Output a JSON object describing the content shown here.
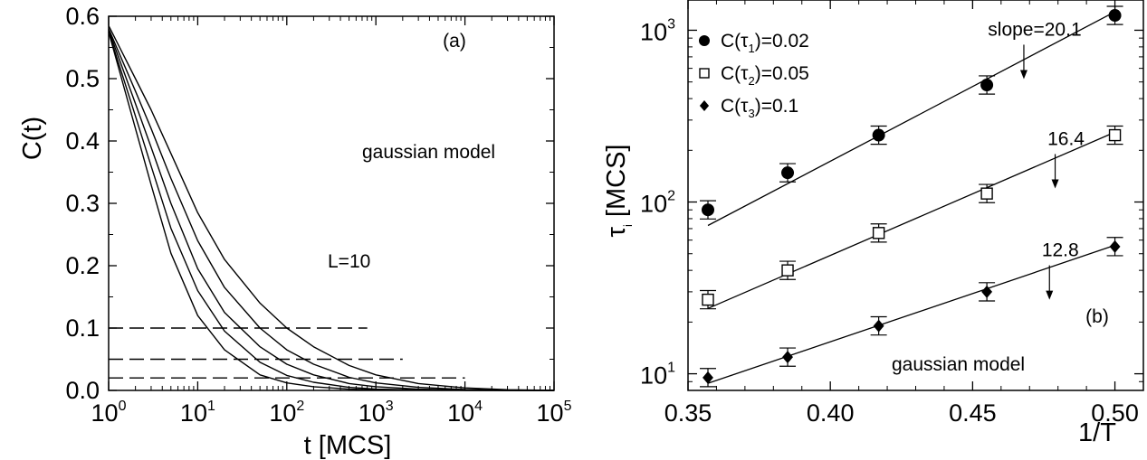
{
  "chart_data": [
    {
      "type": "line",
      "panel_label": "(a)",
      "xlabel": "t [MCS]",
      "ylabel": "C(t)",
      "xscale": "log",
      "x_tick_base": "10",
      "x_tick_exponents": [
        "0",
        "1",
        "2",
        "3",
        "4",
        "5"
      ],
      "xlim": [
        1,
        100000
      ],
      "ylim": [
        0.0,
        0.6
      ],
      "y_ticks": [
        "0.0",
        "0.1",
        "0.2",
        "0.3",
        "0.4",
        "0.5",
        "0.6"
      ],
      "y_tick_values": [
        0.0,
        0.1,
        0.2,
        0.3,
        0.4,
        0.5,
        0.6
      ],
      "annotations": [
        "gaussian model",
        "L=10"
      ],
      "series": [
        {
          "x": [
            1,
            2,
            3,
            5,
            10,
            20,
            50,
            100,
            200,
            500,
            1000,
            3000,
            10000,
            30000,
            100000
          ],
          "y": [
            0.575,
            0.42,
            0.33,
            0.22,
            0.12,
            0.065,
            0.025,
            0.012,
            0.006,
            0.002,
            0.001,
            0.0003,
            0.0001,
            0.0,
            0.0
          ]
        },
        {
          "x": [
            1,
            2,
            3,
            5,
            10,
            20,
            50,
            100,
            200,
            500,
            1000,
            3000,
            10000,
            30000,
            100000
          ],
          "y": [
            0.575,
            0.44,
            0.36,
            0.26,
            0.16,
            0.095,
            0.045,
            0.024,
            0.013,
            0.005,
            0.002,
            0.0008,
            0.0002,
            0.0,
            0.0
          ]
        },
        {
          "x": [
            1,
            2,
            3,
            5,
            10,
            20,
            50,
            100,
            200,
            500,
            1000,
            3000,
            10000,
            30000,
            100000
          ],
          "y": [
            0.578,
            0.46,
            0.39,
            0.3,
            0.195,
            0.125,
            0.07,
            0.042,
            0.025,
            0.011,
            0.006,
            0.002,
            0.0006,
            0.0001,
            0.0
          ]
        },
        {
          "x": [
            1,
            2,
            3,
            5,
            10,
            20,
            50,
            100,
            200,
            500,
            1000,
            3000,
            10000,
            30000,
            100000
          ],
          "y": [
            0.58,
            0.48,
            0.42,
            0.34,
            0.24,
            0.165,
            0.1,
            0.065,
            0.042,
            0.021,
            0.012,
            0.005,
            0.0015,
            0.0004,
            0.0
          ]
        },
        {
          "x": [
            1,
            2,
            3,
            5,
            10,
            20,
            50,
            100,
            200,
            500,
            1000,
            3000,
            10000,
            30000,
            100000
          ],
          "y": [
            0.585,
            0.5,
            0.45,
            0.38,
            0.285,
            0.21,
            0.14,
            0.1,
            0.07,
            0.04,
            0.025,
            0.011,
            0.004,
            0.0012,
            0.0002
          ]
        }
      ],
      "reference_lines": [
        {
          "y": 0.1,
          "x_start": 1,
          "x_end": 800
        },
        {
          "y": 0.05,
          "x_start": 1,
          "x_end": 2000
        },
        {
          "y": 0.02,
          "x_start": 1,
          "x_end": 10000
        }
      ]
    },
    {
      "type": "scatter",
      "panel_label": "(b)",
      "xlabel": "1/T",
      "ylabel_base": "τ",
      "ylabel_sub": "i",
      "ylabel_rest": " [MCS]",
      "yscale": "log",
      "xlim": [
        0.35,
        0.51
      ],
      "ylim": [
        8,
        1500
      ],
      "x_ticks": [
        "0.35",
        "0.40",
        "0.45",
        "0.50"
      ],
      "x_tick_values": [
        0.35,
        0.4,
        0.45,
        0.5
      ],
      "y_tick_base": "10",
      "y_tick_exponents": [
        "1",
        "2",
        "3"
      ],
      "annotation": "gaussian model",
      "series": [
        {
          "legend_prefix": "C(τ",
          "legend_sub": "1",
          "legend_suffix": ")=0.02",
          "marker": "filled-circle",
          "x": [
            0.357,
            0.385,
            0.417,
            0.455,
            0.5
          ],
          "y": [
            90,
            148,
            245,
            480,
            1220
          ],
          "fit": {
            "x": [
              0.357,
              0.5
            ],
            "y": [
              73,
              1280
            ]
          }
        },
        {
          "legend_prefix": "C(τ",
          "legend_sub": "2",
          "legend_suffix": ")=0.05",
          "marker": "open-square",
          "x": [
            0.357,
            0.385,
            0.417,
            0.455,
            0.5
          ],
          "y": [
            27,
            40,
            66,
            112,
            245
          ],
          "fit": {
            "x": [
              0.357,
              0.5
            ],
            "y": [
              24,
              255
            ]
          }
        },
        {
          "legend_prefix": "C(τ",
          "legend_sub": "3",
          "legend_suffix": ")=0.1",
          "marker": "filled-diamond",
          "x": [
            0.357,
            0.385,
            0.417,
            0.455,
            0.5
          ],
          "y": [
            9.5,
            12.5,
            19,
            30,
            55
          ],
          "fit": {
            "x": [
              0.357,
              0.5
            ],
            "y": [
              8.8,
              56
            ]
          }
        }
      ],
      "slope_labels": [
        {
          "text": "slope=20.1",
          "x": 0.468,
          "y": 520
        },
        {
          "text": "16.4",
          "x": 0.479,
          "y": 120
        },
        {
          "text": "12.8",
          "x": 0.477,
          "y": 27
        }
      ]
    }
  ]
}
